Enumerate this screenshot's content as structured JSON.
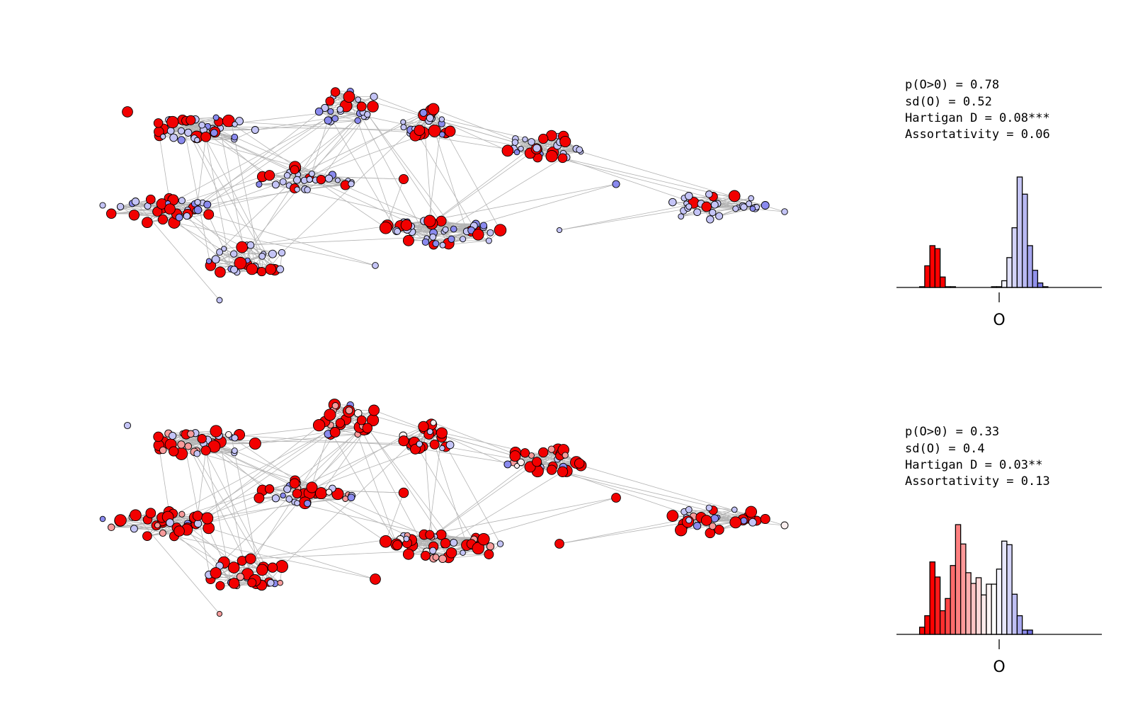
{
  "figure": {
    "palette": {
      "edge": "#b4b4b4",
      "node_outline": "#000000",
      "strong_red": "#f20000",
      "light_blue": "#c8c8f4",
      "strong_blue": "#7474ea"
    }
  },
  "chart_data": [
    {
      "type": "network",
      "panel": "top",
      "node_color_scale": "red (negative O) to white to blue (positive O)",
      "hidden_node_color_mix": {
        "red": 0.33,
        "blue": 0.67
      }
    },
    {
      "type": "bar",
      "panel": "top",
      "title": "",
      "xlabel": "O",
      "ylabel": "",
      "stats": [
        "p(O>0) = 0.78",
        "sd(O) = 0.52",
        "Hartigan D = 0.08***",
        "Assortativity = 0.06"
      ],
      "xlim": [
        -1,
        1
      ],
      "tick": 0,
      "bins": [
        {
          "x": -0.75,
          "count": 1,
          "color": "#ff0000"
        },
        {
          "x": -0.7,
          "count": 29,
          "color": "#ff0000"
        },
        {
          "x": -0.65,
          "count": 56,
          "color": "#ff0000"
        },
        {
          "x": -0.6,
          "count": 52,
          "color": "#ff0000"
        },
        {
          "x": -0.55,
          "count": 14,
          "color": "#ff0000"
        },
        {
          "x": -0.5,
          "count": 1,
          "color": "#ff0000"
        },
        {
          "x": -0.45,
          "count": 1,
          "color": "#ff0000"
        },
        {
          "x": -0.05,
          "count": 1,
          "color": "#ffffff"
        },
        {
          "x": 0.0,
          "count": 1,
          "color": "#ffffff"
        },
        {
          "x": 0.05,
          "count": 9,
          "color": "#f3f3ff"
        },
        {
          "x": 0.1,
          "count": 40,
          "color": "#e2e2fb"
        },
        {
          "x": 0.15,
          "count": 80,
          "color": "#d3d3f8"
        },
        {
          "x": 0.2,
          "count": 148,
          "color": "#c6c6f5"
        },
        {
          "x": 0.25,
          "count": 125,
          "color": "#b8b8f2"
        },
        {
          "x": 0.3,
          "count": 56,
          "color": "#a5a5ee"
        },
        {
          "x": 0.35,
          "count": 23,
          "color": "#9090ea"
        },
        {
          "x": 0.4,
          "count": 6,
          "color": "#7a7ae6"
        },
        {
          "x": 0.45,
          "count": 1,
          "color": "#6a6ae2"
        }
      ]
    },
    {
      "type": "network",
      "panel": "bottom",
      "node_color_scale": "red (negative O) to white to blue (positive O)",
      "hidden_node_color_mix": {
        "red": 0.6,
        "light_red": 0.15,
        "white": 0.05,
        "blue": 0.2
      }
    },
    {
      "type": "bar",
      "panel": "bottom",
      "title": "",
      "xlabel": "O",
      "ylabel": "",
      "stats": [
        "p(O>0) = 0.33",
        "sd(O) = 0.4",
        "Hartigan D = 0.03**",
        "Assortativity = 0.13"
      ],
      "xlim": [
        -1,
        1
      ],
      "tick": 0,
      "bins": [
        {
          "x": -0.75,
          "count": 10,
          "color": "#ff0000"
        },
        {
          "x": -0.7,
          "count": 26,
          "color": "#ff0000"
        },
        {
          "x": -0.65,
          "count": 101,
          "color": "#ff0000"
        },
        {
          "x": -0.6,
          "count": 80,
          "color": "#ff1a1a"
        },
        {
          "x": -0.55,
          "count": 33,
          "color": "#ff2e2e"
        },
        {
          "x": -0.5,
          "count": 50,
          "color": "#ff4545"
        },
        {
          "x": -0.45,
          "count": 96,
          "color": "#ff6b6b"
        },
        {
          "x": -0.4,
          "count": 153,
          "color": "#ff8080"
        },
        {
          "x": -0.35,
          "count": 126,
          "color": "#ff9a9a"
        },
        {
          "x": -0.3,
          "count": 86,
          "color": "#ffb0b0"
        },
        {
          "x": -0.25,
          "count": 71,
          "color": "#ffc4c4"
        },
        {
          "x": -0.2,
          "count": 79,
          "color": "#ffd8d8"
        },
        {
          "x": -0.15,
          "count": 55,
          "color": "#ffeaea"
        },
        {
          "x": -0.1,
          "count": 70,
          "color": "#fff5f5"
        },
        {
          "x": -0.05,
          "count": 70,
          "color": "#ffffff"
        },
        {
          "x": 0.0,
          "count": 91,
          "color": "#f5f5ff"
        },
        {
          "x": 0.05,
          "count": 130,
          "color": "#e8e8fc"
        },
        {
          "x": 0.1,
          "count": 125,
          "color": "#d4d4f8"
        },
        {
          "x": 0.15,
          "count": 56,
          "color": "#c0c0f4"
        },
        {
          "x": 0.2,
          "count": 26,
          "color": "#a8a8ef"
        },
        {
          "x": 0.25,
          "count": 6,
          "color": "#8c8ce9"
        },
        {
          "x": 0.3,
          "count": 6,
          "color": "#6f6fe3"
        }
      ]
    }
  ]
}
